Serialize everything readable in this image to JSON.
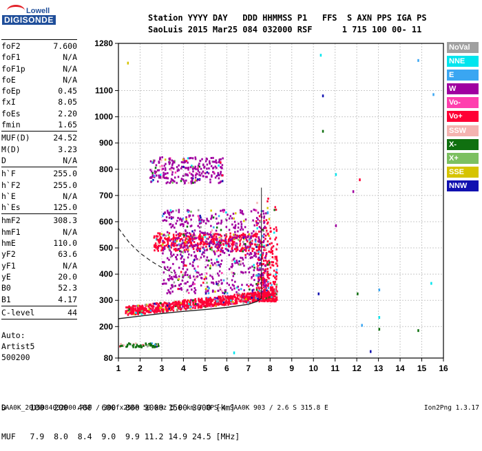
{
  "logo": {
    "top": "Lowell",
    "bottom": "DIGISONDE"
  },
  "header": {
    "line1": "Station YYYY DAY   DDD HHMMSS P1   FFS  S AXN PPS IGA PS",
    "line2": "SaoLuis 2015 Mar25 084 032000 RSF      1 715 100 00- 11"
  },
  "params_group1": [
    {
      "name": "foF2",
      "value": "7.600"
    },
    {
      "name": "foF1",
      "value": "N/A"
    },
    {
      "name": "foF1p",
      "value": "N/A"
    },
    {
      "name": "foE",
      "value": "N/A"
    },
    {
      "name": "foEp",
      "value": "0.45"
    },
    {
      "name": "fxI",
      "value": "8.05"
    },
    {
      "name": "foEs",
      "value": "2.20"
    },
    {
      "name": "fmin",
      "value": "1.65"
    }
  ],
  "params_group2": [
    {
      "name": "MUF(D)",
      "value": "24.52"
    },
    {
      "name": "M(D)",
      "value": "3.23"
    },
    {
      "name": "D",
      "value": "N/A"
    }
  ],
  "params_group3": [
    {
      "name": "h`F",
      "value": "255.0"
    },
    {
      "name": "h`F2",
      "value": "255.0"
    },
    {
      "name": "h`E",
      "value": "N/A"
    },
    {
      "name": "h`Es",
      "value": "125.0"
    }
  ],
  "params_group4": [
    {
      "name": "hmF2",
      "value": "308.3"
    },
    {
      "name": "hmF1",
      "value": "N/A"
    },
    {
      "name": "hmE",
      "value": "110.0"
    },
    {
      "name": "yF2",
      "value": "63.6"
    },
    {
      "name": "yF1",
      "value": "N/A"
    },
    {
      "name": "yE",
      "value": "20.0"
    },
    {
      "name": "B0",
      "value": "52.3"
    },
    {
      "name": "B1",
      "value": "4.17"
    }
  ],
  "params_group5": [
    {
      "name": "C-level",
      "value": "44"
    }
  ],
  "autoscaling": {
    "line1": "Auto:",
    "line2": "Artist5",
    "line3": "500200"
  },
  "muf_table": {
    "row1": "D     100  200  400  600  800 1000 1500 3000 [km]",
    "row2": "MUF   7.9  8.0  8.4  9.0  9.9 11.2 14.9 24.5 [MHz]"
  },
  "footer": {
    "left": "SAA0K_2015084032000.RSF / 300fx256h 50 kHz 5.0 km / DPS-4 SAA0K 903 / 2.6 S 315.8 E",
    "right": "Ion2Png 1.3.17"
  },
  "legend": [
    {
      "label": "NoVal",
      "color": "#a0a0a0"
    },
    {
      "label": "NNE",
      "color": "#00e5ee"
    },
    {
      "label": "E",
      "color": "#3aa6f2"
    },
    {
      "label": "W",
      "color": "#a000a0"
    },
    {
      "label": "Vo-",
      "color": "#ff3fae"
    },
    {
      "label": "Vo+",
      "color": "#ff0035"
    },
    {
      "label": "SSW",
      "color": "#f4b3b0"
    },
    {
      "label": "X-",
      "color": "#107010"
    },
    {
      "label": "X+",
      "color": "#7cc060"
    },
    {
      "label": "SSE",
      "color": "#d6c400"
    },
    {
      "label": "NNW",
      "color": "#1010b0"
    }
  ],
  "chart_data": {
    "type": "scatter",
    "title": "",
    "xlabel": "",
    "ylabel": "",
    "x_unit": "MHz",
    "y_unit": "km",
    "xlim": [
      1,
      16
    ],
    "ylim": [
      80,
      1280
    ],
    "xticks": [
      1,
      2,
      3,
      4,
      5,
      6,
      7,
      8,
      9,
      10,
      11,
      12,
      13,
      14,
      15,
      16
    ],
    "yticks": [
      80,
      200,
      300,
      400,
      500,
      600,
      700,
      800,
      900,
      1000,
      1100,
      1280
    ],
    "grid": true,
    "legend_position": "right",
    "trace_regions": [
      {
        "name": "F-layer trace",
        "color": "#ff0035",
        "x": [
          1.3,
          8.3
        ],
        "y": [
          240,
          330
        ]
      },
      {
        "name": "F2 lobe",
        "color": "#ff0035",
        "x": [
          7.3,
          8.3
        ],
        "y": [
          300,
          700
        ]
      },
      {
        "name": "Second hop",
        "color": "#ff0035",
        "x": [
          2.6,
          7.5
        ],
        "y": [
          490,
          560
        ]
      },
      {
        "name": "Spread F",
        "color": "#a000a0",
        "x": [
          3.0,
          7.8
        ],
        "y": [
          330,
          650
        ]
      },
      {
        "name": "Third hop",
        "color": "#a000a0",
        "x": [
          2.4,
          5.8
        ],
        "y": [
          750,
          850
        ]
      },
      {
        "name": "Es trace",
        "color": "#107010",
        "x": [
          1.0,
          2.9
        ],
        "y": [
          125,
          140
        ]
      }
    ],
    "profile_curve": {
      "name": "Electron density profile",
      "x": [
        1.0,
        2.0,
        3.0,
        4.0,
        5.0,
        6.0,
        7.0,
        7.4,
        7.6
      ],
      "y": [
        230,
        240,
        250,
        258,
        265,
        273,
        285,
        296,
        308
      ]
    },
    "dashed_curve": {
      "name": "Extrapolation",
      "x": [
        1.0,
        1.5,
        2.0,
        2.5,
        3.0,
        3.5
      ],
      "y": [
        575,
        520,
        480,
        450,
        425,
        405
      ]
    }
  }
}
